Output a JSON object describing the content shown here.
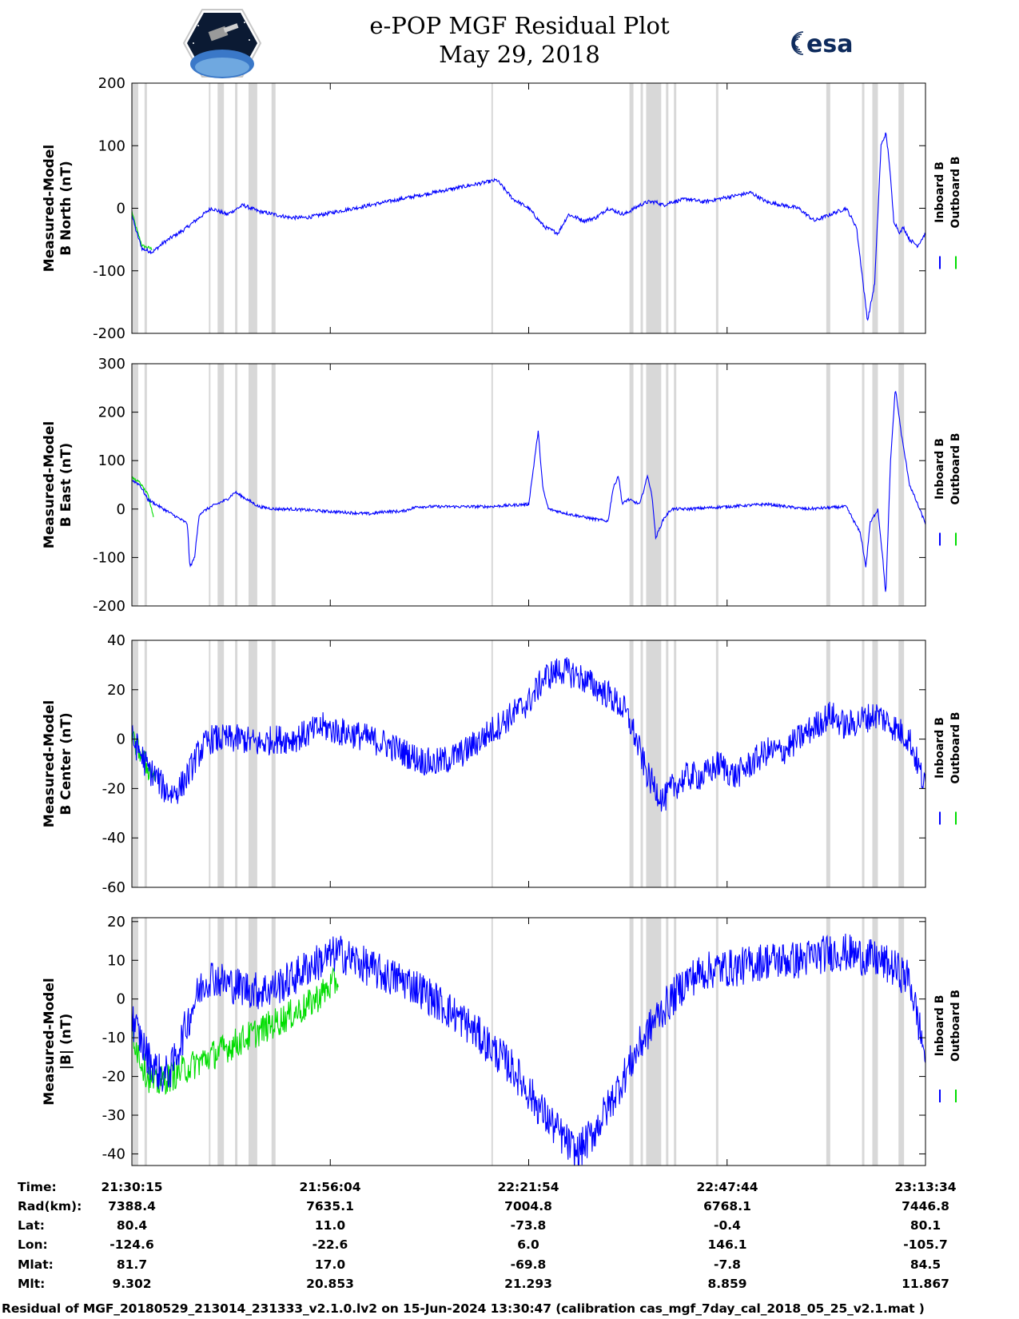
{
  "header": {
    "title_line1": "e-POP MGF Residual Plot",
    "title_line2": "May 29, 2018",
    "logo_left": "cassiope-mission-patch",
    "logo_right_text": "esa"
  },
  "colors": {
    "inboard": "#0000ff",
    "outboard": "#00dd00",
    "gap": "#d8d8d8",
    "frame": "#000000"
  },
  "chart_data": [
    {
      "type": "line",
      "ylabel_line1": "Measured-Model",
      "ylabel_line2": "B North (nT)",
      "ylim": [
        -200,
        200
      ],
      "yticks": [
        "200",
        "100",
        "0",
        "-100",
        "-200"
      ],
      "tick_values": [
        200,
        100,
        0,
        -100,
        -200
      ],
      "legend": [
        "Inboard B",
        "Outboard B"
      ],
      "series": [
        {
          "name": "Inboard B",
          "x": [
            0,
            0.5,
            1.3,
            2.6,
            4,
            5.2,
            6.5,
            8,
            10,
            12,
            14,
            16,
            18,
            20,
            22,
            24,
            26,
            28,
            30,
            32,
            34,
            36,
            38,
            40,
            42,
            44,
            46,
            48,
            50,
            52,
            53.7,
            55,
            57,
            58.5,
            60,
            62,
            64,
            65,
            66,
            67,
            68,
            70,
            72,
            74,
            76,
            78,
            80,
            82,
            84,
            86,
            88,
            90,
            91.3,
            92.7,
            93.6,
            94.4,
            95,
            95.4,
            96,
            96.8,
            97.2,
            98,
            99,
            100
          ],
          "y": [
            -10,
            -35,
            -65,
            -70,
            -55,
            -45,
            -35,
            -20,
            0,
            -10,
            5,
            -5,
            -10,
            -15,
            -15,
            -10,
            -5,
            0,
            5,
            10,
            15,
            20,
            25,
            30,
            35,
            40,
            45,
            15,
            0,
            -30,
            -40,
            -10,
            -20,
            -15,
            0,
            -10,
            5,
            10,
            10,
            5,
            10,
            15,
            10,
            15,
            20,
            25,
            10,
            5,
            0,
            -20,
            -10,
            0,
            -30,
            -180,
            -120,
            100,
            120,
            80,
            -20,
            -40,
            -30,
            -50,
            -60,
            -40
          ]
        },
        {
          "name": "Outboard B",
          "x": [
            0,
            0.5,
            1.3,
            2.6
          ],
          "y": [
            -5,
            -30,
            -60,
            -65
          ]
        }
      ]
    },
    {
      "type": "line",
      "ylabel_line1": "Measured-Model",
      "ylabel_line2": "B East (nT)",
      "ylim": [
        -200,
        300
      ],
      "yticks": [
        "300",
        "200",
        "100",
        "0",
        "-100",
        "-200"
      ],
      "tick_values": [
        300,
        200,
        100,
        0,
        -100,
        -200
      ],
      "legend": [
        "Inboard B",
        "Outboard B"
      ],
      "series": [
        {
          "name": "Inboard B",
          "x": [
            0,
            1,
            2,
            3,
            5,
            7,
            7.3,
            7.9,
            8.5,
            10,
            12,
            13,
            15,
            16,
            18,
            20,
            22,
            25,
            28,
            30,
            32,
            34,
            36,
            38,
            40,
            45,
            50,
            51.2,
            51.8,
            52.5,
            55,
            58,
            60,
            60.6,
            61.3,
            61.8,
            62.5,
            64,
            65,
            65.6,
            66,
            67,
            68,
            70,
            75,
            80,
            85,
            90,
            91.8,
            92.5,
            93,
            94,
            94.6,
            95,
            95.6,
            96.2,
            97,
            98,
            100
          ],
          "y": [
            60,
            50,
            20,
            10,
            -10,
            -30,
            -120,
            -100,
            -10,
            5,
            20,
            35,
            15,
            5,
            0,
            0,
            -2,
            -5,
            -8,
            -10,
            -5,
            -5,
            5,
            5,
            5,
            5,
            10,
            160,
            40,
            0,
            -10,
            -20,
            -25,
            40,
            70,
            10,
            20,
            10,
            70,
            20,
            -60,
            -20,
            0,
            0,
            5,
            10,
            0,
            5,
            -50,
            -120,
            -30,
            0,
            -100,
            -180,
            100,
            250,
            150,
            50,
            -30
          ]
        },
        {
          "name": "Outboard B",
          "x": [
            0,
            1,
            2,
            2.8
          ],
          "y": [
            65,
            55,
            30,
            -20
          ]
        }
      ]
    },
    {
      "type": "line",
      "ylabel_line1": "Measured-Model",
      "ylabel_line2": "B Center (nT)",
      "ylim": [
        -60,
        40
      ],
      "yticks": [
        "40",
        "20",
        "0",
        "-20",
        "-40",
        "-60"
      ],
      "tick_values": [
        40,
        20,
        0,
        -20,
        -40,
        -60
      ],
      "legend": [
        "Inboard B",
        "Outboard B"
      ],
      "series": [
        {
          "name": "Inboard B",
          "x": [
            0,
            1,
            2,
            3,
            4,
            5,
            6,
            7,
            8,
            9,
            10,
            12,
            14,
            16,
            18,
            20,
            22,
            24,
            26,
            28,
            30,
            32,
            34,
            36,
            38,
            40,
            42,
            44,
            46,
            48,
            50,
            52,
            54,
            56,
            58,
            60,
            62,
            63,
            64,
            65,
            66,
            67,
            68,
            70,
            72,
            74,
            76,
            78,
            80,
            82,
            84,
            86,
            88,
            90,
            92,
            94,
            96,
            98,
            100
          ],
          "y": [
            0,
            -5,
            -12,
            -15,
            -20,
            -22,
            -20,
            -15,
            -8,
            -3,
            0,
            0,
            0,
            -2,
            0,
            0,
            2,
            5,
            3,
            2,
            0,
            -2,
            -5,
            -8,
            -10,
            -8,
            -5,
            0,
            5,
            10,
            15,
            25,
            28,
            26,
            22,
            18,
            12,
            5,
            -5,
            -15,
            -20,
            -25,
            -20,
            -15,
            -15,
            -10,
            -15,
            -10,
            -5,
            -5,
            0,
            5,
            10,
            5,
            8,
            10,
            5,
            0,
            -20
          ]
        },
        {
          "name": "Outboard B",
          "x": [
            0,
            1,
            2,
            3
          ],
          "y": [
            0,
            -5,
            -12,
            -15
          ]
        }
      ]
    },
    {
      "type": "line",
      "ylabel_line1": "Measured-Model",
      "ylabel_line2": "|B| (nT)",
      "ylim": [
        -43,
        21
      ],
      "yticks": [
        "20",
        "10",
        "0",
        "-10",
        "-20",
        "-30",
        "-40"
      ],
      "tick_values": [
        20,
        10,
        0,
        -10,
        -20,
        -30,
        -40
      ],
      "legend": [
        "Inboard B",
        "Outboard B"
      ],
      "series": [
        {
          "name": "Inboard B",
          "x": [
            0,
            1,
            2,
            3,
            4,
            5,
            6,
            7,
            8,
            9,
            10,
            11,
            12,
            14,
            16,
            18,
            20,
            22,
            24,
            26,
            28,
            30,
            32,
            34,
            36,
            38,
            40,
            42,
            44,
            46,
            48,
            50,
            52,
            54,
            56,
            58,
            60,
            62,
            64,
            66,
            68,
            70,
            72,
            74,
            76,
            78,
            80,
            82,
            84,
            86,
            88,
            90,
            92,
            94,
            96,
            98,
            100
          ],
          "y": [
            -5,
            -10,
            -15,
            -18,
            -20,
            -18,
            -12,
            -6,
            0,
            4,
            6,
            5,
            4,
            3,
            2,
            3,
            5,
            8,
            10,
            12,
            10,
            8,
            6,
            5,
            3,
            0,
            -3,
            -6,
            -10,
            -14,
            -18,
            -24,
            -30,
            -35,
            -40,
            -35,
            -28,
            -20,
            -12,
            -5,
            0,
            5,
            7,
            8,
            8,
            9,
            10,
            10,
            10,
            11,
            12,
            12,
            11,
            10,
            8,
            5,
            -15
          ]
        },
        {
          "name": "Outboard B",
          "x": [
            0,
            1,
            2,
            3,
            22,
            26
          ],
          "y": [
            -8,
            -15,
            -20,
            -22,
            -2,
            5
          ]
        }
      ]
    }
  ],
  "data_gaps_pct": [
    [
      0,
      0.8
    ],
    [
      1.6,
      1.9
    ],
    [
      9.7,
      9.9
    ],
    [
      10.8,
      11.6
    ],
    [
      13.0,
      13.3
    ],
    [
      14.7,
      15.8
    ],
    [
      17.6,
      18.1
    ],
    [
      45.3,
      45.5
    ],
    [
      62.7,
      63.2
    ],
    [
      64.1,
      64.4
    ],
    [
      64.8,
      66.7
    ],
    [
      67.3,
      67.6
    ],
    [
      68.3,
      68.6
    ],
    [
      73.6,
      73.9
    ],
    [
      87.5,
      88.0
    ],
    [
      92.0,
      92.3
    ],
    [
      93.3,
      94.0
    ],
    [
      96.6,
      97.3
    ]
  ],
  "orbit": {
    "labels": [
      "Time:",
      "Rad(km):",
      "Lat:",
      "Lon:",
      "Mlat:",
      "Mlt:"
    ],
    "columns": [
      [
        "21:30:15",
        "7388.4",
        "80.4",
        "-124.6",
        "81.7",
        "9.302"
      ],
      [
        "21:56:04",
        "7635.1",
        "11.0",
        "-22.6",
        "17.0",
        "20.853"
      ],
      [
        "22:21:54",
        "7004.8",
        "-73.8",
        "6.0",
        "-69.8",
        "21.293"
      ],
      [
        "22:47:44",
        "6768.1",
        "-0.4",
        "146.1",
        "-7.8",
        "8.859"
      ],
      [
        "23:13:34",
        "7446.8",
        "80.1",
        "-105.7",
        "84.5",
        "11.867"
      ]
    ]
  },
  "footer": {
    "text": "Residual of MGF_20180529_213014_231333_v2.1.0.lv2 on 15-Jun-2024 13:30:47 (calibration cas_mgf_7day_cal_2018_05_25_v2.1.mat )"
  }
}
